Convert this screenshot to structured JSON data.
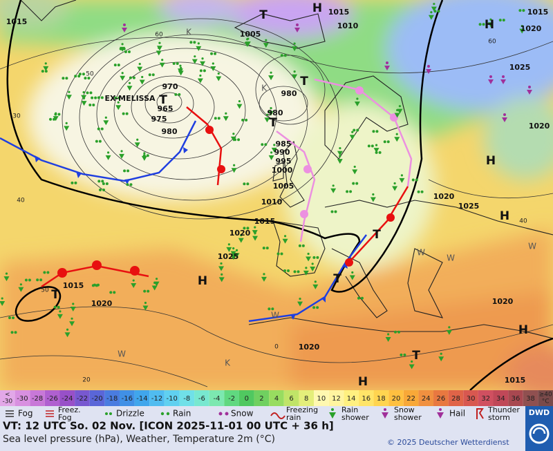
{
  "map": {
    "storm_name": "EX-MELISSA",
    "pressure_labels": [
      "1015",
      "1015",
      "1010",
      "1005",
      "1015",
      "1020",
      "1025",
      "1020",
      "970",
      "965",
      "975",
      "980",
      "980",
      "980",
      "985",
      "990",
      "995",
      "1000",
      "1005",
      "1010",
      "1015",
      "1020",
      "1025",
      "1020",
      "1025",
      "1020",
      "1015",
      "1020",
      "1020",
      "1015"
    ],
    "pressure_centers": [
      "T",
      "H",
      "H",
      "T",
      "T",
      "T",
      "H",
      "H",
      "H",
      "T",
      "T",
      "T",
      "H",
      "H",
      "T"
    ],
    "grid_labels": [
      "60",
      "50",
      "30",
      "40",
      "60",
      "40",
      "50",
      "20",
      "0"
    ],
    "air_mass_labels": [
      "K",
      "K",
      "K",
      "W",
      "W",
      "W",
      "W",
      "W"
    ]
  },
  "color_scale": {
    "below": [
      "<",
      "-30"
    ],
    "steps": [
      "-30",
      "-28",
      "-26",
      "-24",
      "-22",
      "-20",
      "-18",
      "-16",
      "-14",
      "-12",
      "-10",
      "-8",
      "-6",
      "-4",
      "-2",
      "0",
      "2",
      "4",
      "6",
      "8",
      "10",
      "12",
      "14",
      "16",
      "18",
      "20",
      "22",
      "24",
      "26",
      "28",
      "30",
      "32",
      "34",
      "36",
      "38"
    ],
    "above": [
      "≥40",
      "°C"
    ]
  },
  "weather_legend": [
    [
      "Fog"
    ],
    [
      "Freez.",
      "Fog"
    ],
    [
      "Drizzle"
    ],
    [
      "Rain"
    ],
    [
      "Snow"
    ],
    [
      "Freezing",
      "rain"
    ],
    [
      "Rain",
      "shower"
    ],
    [
      "Snow",
      "shower"
    ],
    [
      "Hail"
    ],
    [
      "Thunder",
      "storm"
    ]
  ],
  "footer": {
    "valid_time": "VT: 12 UTC So.  02 Nov. [ICON 2025-11-01  00 UTC + 36 h]",
    "description": "Sea level pressure (hPa), Weather, Temperature 2m (°C)",
    "copyright": "© 2025 Deutscher Wetterdienst",
    "logo": "DWD"
  }
}
